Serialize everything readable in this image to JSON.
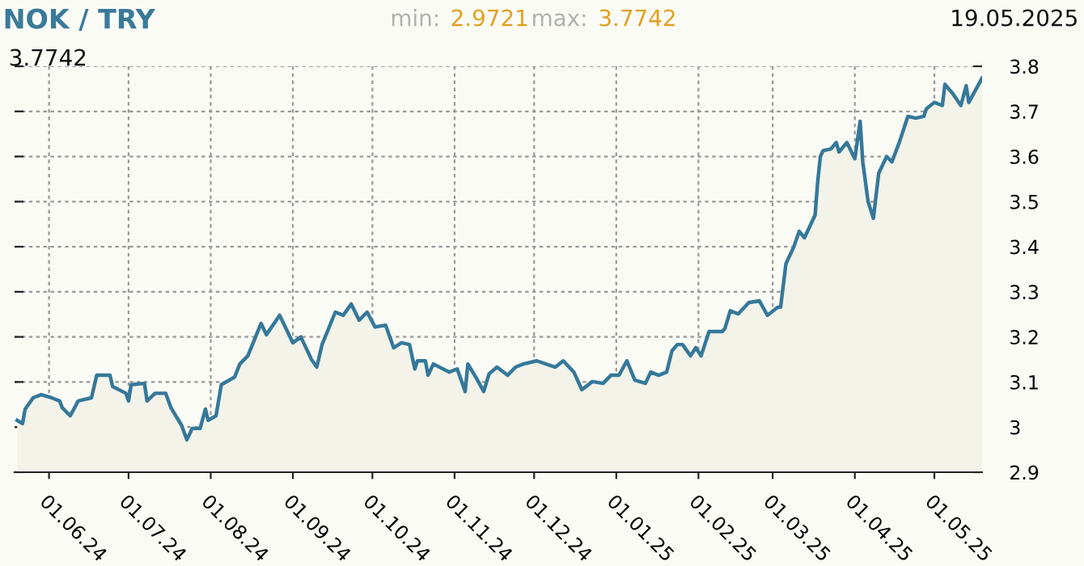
{
  "chart_data": {
    "type": "area",
    "title": "NOK / TRY",
    "annotations": [
      "min: 2.9721",
      "max: 3.7742",
      "19.05.2025",
      "3.7742"
    ],
    "x": [
      "2024-05-20",
      "2024-05-22",
      "2024-05-23",
      "2024-05-26",
      "2024-05-29",
      "2024-06-02",
      "2024-06-05",
      "2024-06-06",
      "2024-06-09",
      "2024-06-12",
      "2024-06-17",
      "2024-06-19",
      "2024-06-24",
      "2024-06-25",
      "2024-06-30",
      "2024-07-01",
      "2024-07-02",
      "2024-07-07",
      "2024-07-08",
      "2024-07-11",
      "2024-07-15",
      "2024-07-17",
      "2024-07-21",
      "2024-07-23",
      "2024-07-25",
      "2024-07-28",
      "2024-07-30",
      "2024-07-31",
      "2024-08-03",
      "2024-08-05",
      "2024-08-10",
      "2024-08-12",
      "2024-08-15",
      "2024-08-20",
      "2024-08-22",
      "2024-08-27",
      "2024-09-01",
      "2024-09-04",
      "2024-09-08",
      "2024-09-10",
      "2024-09-12",
      "2024-09-17",
      "2024-09-20",
      "2024-09-23",
      "2024-09-26",
      "2024-09-29",
      "2024-10-02",
      "2024-10-06",
      "2024-10-09",
      "2024-10-12",
      "2024-10-15",
      "2024-10-17",
      "2024-10-18",
      "2024-10-21",
      "2024-10-22",
      "2024-10-24",
      "2024-10-30",
      "2024-11-02",
      "2024-11-05",
      "2024-11-06",
      "2024-11-09",
      "2024-11-12",
      "2024-11-14",
      "2024-11-17",
      "2024-11-21",
      "2024-11-24",
      "2024-11-27",
      "2024-12-02",
      "2024-12-09",
      "2024-12-12",
      "2024-12-16",
      "2024-12-19",
      "2024-12-23",
      "2024-12-27",
      "2024-12-30",
      "2025-01-02",
      "2025-01-05",
      "2025-01-08",
      "2025-01-12",
      "2025-01-14",
      "2025-01-17",
      "2025-01-20",
      "2025-01-22",
      "2025-01-24",
      "2025-01-26",
      "2025-01-29",
      "2025-01-31",
      "2025-02-02",
      "2025-02-05",
      "2025-02-10",
      "2025-02-11",
      "2025-02-13",
      "2025-02-16",
      "2025-02-20",
      "2025-02-24",
      "2025-02-27",
      "2025-03-03",
      "2025-03-04",
      "2025-03-06",
      "2025-03-09",
      "2025-03-11",
      "2025-03-13",
      "2025-03-17",
      "2025-03-18",
      "2025-03-19",
      "2025-03-20",
      "2025-03-23",
      "2025-03-25",
      "2025-03-26",
      "2025-03-29",
      "2025-04-01",
      "2025-04-03",
      "2025-04-04",
      "2025-04-06",
      "2025-04-08",
      "2025-04-10",
      "2025-04-13",
      "2025-04-15",
      "2025-04-18",
      "2025-04-21",
      "2025-04-24",
      "2025-04-27",
      "2025-04-28",
      "2025-05-01",
      "2025-05-04",
      "2025-05-05",
      "2025-05-08",
      "2025-05-11",
      "2025-05-13",
      "2025-05-14",
      "2025-05-19"
    ],
    "series": [
      {
        "color": "#35789a",
        "values": [
          3.015,
          3.008,
          3.04,
          3.065,
          3.072,
          3.065,
          3.058,
          3.043,
          3.025,
          3.058,
          3.065,
          3.115,
          3.115,
          3.09,
          3.075,
          3.058,
          3.094,
          3.097,
          3.058,
          3.075,
          3.075,
          3.043,
          3.004,
          2.972,
          2.997,
          2.997,
          3.04,
          3.015,
          3.025,
          3.094,
          3.111,
          3.14,
          3.158,
          3.23,
          3.205,
          3.248,
          3.187,
          3.2,
          3.15,
          3.133,
          3.183,
          3.255,
          3.248,
          3.273,
          3.237,
          3.255,
          3.222,
          3.226,
          3.176,
          3.187,
          3.183,
          3.129,
          3.147,
          3.147,
          3.115,
          3.14,
          3.122,
          3.129,
          3.079,
          3.14,
          3.111,
          3.079,
          3.118,
          3.133,
          3.115,
          3.133,
          3.14,
          3.147,
          3.133,
          3.147,
          3.122,
          3.083,
          3.101,
          3.097,
          3.115,
          3.115,
          3.147,
          3.104,
          3.097,
          3.122,
          3.115,
          3.122,
          3.169,
          3.183,
          3.183,
          3.158,
          3.176,
          3.158,
          3.212,
          3.212,
          3.219,
          3.258,
          3.251,
          3.276,
          3.28,
          3.248,
          3.266,
          3.266,
          3.362,
          3.4,
          3.434,
          3.42,
          3.47,
          3.545,
          3.6,
          3.613,
          3.617,
          3.631,
          3.61,
          3.631,
          3.595,
          3.678,
          3.588,
          3.5,
          3.463,
          3.563,
          3.6,
          3.588,
          3.635,
          3.689,
          3.685,
          3.689,
          3.706,
          3.72,
          3.713,
          3.76,
          3.739,
          3.713,
          3.757,
          3.72,
          3.774
        ]
      }
    ],
    "xlim": [
      "2024-05-19",
      "2025-05-19"
    ],
    "xticks": [
      {
        "value": "2024-06-01",
        "label": "01.06.24"
      },
      {
        "value": "2024-07-01",
        "label": "01.07.24"
      },
      {
        "value": "2024-08-01",
        "label": "01.08.24"
      },
      {
        "value": "2024-09-01",
        "label": "01.09.24"
      },
      {
        "value": "2024-10-01",
        "label": "01.10.24"
      },
      {
        "value": "2024-11-01",
        "label": "01.11.24"
      },
      {
        "value": "2024-12-01",
        "label": "01.12.24"
      },
      {
        "value": "2025-01-01",
        "label": "01.01.25"
      },
      {
        "value": "2025-02-01",
        "label": "01.02.25"
      },
      {
        "value": "2025-03-01",
        "label": "01.03.25"
      },
      {
        "value": "2025-04-01",
        "label": "01.04.25"
      },
      {
        "value": "2025-05-01",
        "label": "01.05.25"
      }
    ],
    "ylim": [
      2.9,
      3.8
    ],
    "yticks": [
      2.9,
      3,
      3.1,
      3.2,
      3.3,
      3.4,
      3.5,
      3.6,
      3.7,
      3.8
    ],
    "grid": true,
    "line_style": "solid"
  }
}
